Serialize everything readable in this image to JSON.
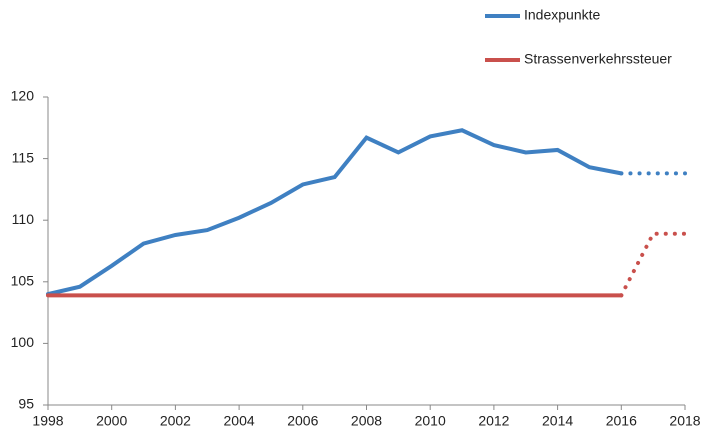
{
  "chart_data": {
    "type": "line",
    "x": [
      1998,
      1999,
      2000,
      2001,
      2002,
      2003,
      2004,
      2005,
      2006,
      2007,
      2008,
      2009,
      2010,
      2011,
      2012,
      2013,
      2014,
      2015,
      2016,
      2017,
      2018
    ],
    "series": [
      {
        "name": "Indexpunkte",
        "color": "#3f80c2",
        "values": [
          104.0,
          104.6,
          106.3,
          108.1,
          108.8,
          109.2,
          110.2,
          111.4,
          112.9,
          113.5,
          116.7,
          115.5,
          116.8,
          117.3,
          116.1,
          115.5,
          115.7,
          114.3,
          113.8,
          113.8,
          113.8
        ]
      },
      {
        "name": "Strassenverkehrssteuer",
        "color": "#c9504c",
        "values": [
          103.9,
          103.9,
          103.9,
          103.9,
          103.9,
          103.9,
          103.9,
          103.9,
          103.9,
          103.9,
          103.9,
          103.9,
          103.9,
          103.9,
          103.9,
          103.9,
          103.9,
          103.9,
          103.9,
          108.9,
          108.9
        ]
      }
    ],
    "dotted_from": 2016,
    "xlim": [
      1998,
      2018
    ],
    "xticks": [
      1998,
      2000,
      2002,
      2004,
      2006,
      2008,
      2010,
      2012,
      2014,
      2016,
      2018
    ],
    "ylim": [
      95,
      120
    ],
    "yticks": [
      95,
      100,
      105,
      110,
      115,
      120
    ],
    "grid": false,
    "legend": "top-right"
  }
}
